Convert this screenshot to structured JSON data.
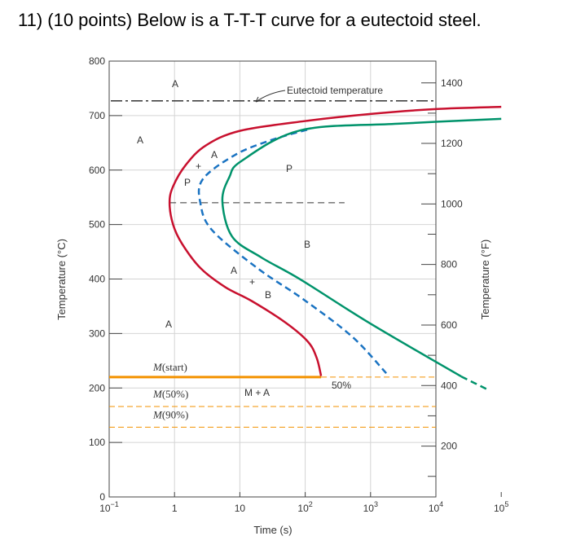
{
  "title": "11) (10 points) Below is a T-T-T curve for a eutectoid steel.",
  "chart_data": {
    "type": "line",
    "xlabel": "Time (s)",
    "ylabel": "Temperature (°C)",
    "ylabel_right": "Temperature (°F)",
    "x_scale": "log",
    "xlim": [
      0.1,
      100000
    ],
    "ylim": [
      0,
      800
    ],
    "x_ticks": [
      {
        "value": 0.1,
        "base": "10",
        "exp": "−1"
      },
      {
        "value": 1,
        "base": "1",
        "exp": ""
      },
      {
        "value": 10,
        "base": "10",
        "exp": ""
      },
      {
        "value": 100,
        "base": "10",
        "exp": "2"
      },
      {
        "value": 1000,
        "base": "10",
        "exp": "3"
      },
      {
        "value": 10000,
        "base": "10",
        "exp": "4"
      },
      {
        "value": 100000,
        "base": "10",
        "exp": "5"
      }
    ],
    "y_ticks": [
      "0",
      "100",
      "200",
      "300",
      "400",
      "500",
      "600",
      "700",
      "800"
    ],
    "y_right_ticks": [
      "200",
      "400",
      "600",
      "800",
      "1000",
      "1200",
      "1400"
    ],
    "grid": true,
    "eutectoid_temperature": 727,
    "eutectoid_label": "Eutectoid temperature",
    "nose_reference_temperature": 540,
    "series": [
      {
        "id": "start",
        "color": "#c8102e",
        "style": "solid",
        "points": [
          [
            100000,
            716
          ],
          [
            10000,
            712
          ],
          [
            1000,
            703
          ],
          [
            100,
            690
          ],
          [
            10,
            672
          ],
          [
            3,
            645
          ],
          [
            1.5,
            610
          ],
          [
            0.95,
            570
          ],
          [
            0.84,
            540
          ],
          [
            0.95,
            500
          ],
          [
            1.3,
            465
          ],
          [
            2.5,
            420
          ],
          [
            6,
            385
          ],
          [
            15,
            360
          ],
          [
            50,
            320
          ],
          [
            110,
            285
          ],
          [
            150,
            255
          ],
          [
            175,
            222
          ]
        ]
      },
      {
        "id": "fifty-percent",
        "color": "#1a73c2",
        "style": "dashed",
        "points": [
          [
            107,
            674
          ],
          [
            30,
            655
          ],
          [
            8.5,
            628
          ],
          [
            2.7,
            583
          ],
          [
            2.5,
            538
          ],
          [
            3.8,
            489
          ],
          [
            19,
            419
          ],
          [
            93,
            363
          ],
          [
            525,
            294
          ],
          [
            1740,
            227
          ]
        ]
      },
      {
        "id": "finish",
        "color": "#00936b",
        "style": "solid",
        "points": [
          [
            100000,
            694
          ],
          [
            2600,
            685
          ],
          [
            85,
            673
          ],
          [
            10.7,
            617
          ],
          [
            6.9,
            587
          ],
          [
            5.4,
            543
          ],
          [
            7.6,
            478
          ],
          [
            21,
            440
          ],
          [
            85,
            399
          ],
          [
            1000,
            318
          ],
          [
            24500,
            221
          ]
        ]
      },
      {
        "id": "finish-extension",
        "color": "#00936b",
        "style": "dashed",
        "points": [
          [
            24500,
            221
          ],
          [
            62000,
            197
          ]
        ]
      }
    ],
    "martensite_lines": [
      {
        "label_M": "M",
        "label_rest": "(start)",
        "temperature": 220,
        "solid_until": 175
      },
      {
        "label_M": "M",
        "label_rest": "(50%)",
        "temperature": 166
      },
      {
        "label_M": "M",
        "label_rest": "(90%)",
        "temperature": 128
      }
    ],
    "martensite_color": "#f39200",
    "region_labels": {
      "a_top": "A",
      "a_left": "A",
      "p_right": "P",
      "p_mix": "P",
      "plus_upper": "+",
      "a_mix_upper": "A",
      "b_right": "B",
      "a_mix_lower": "A",
      "plus_lower": "+",
      "b_mix": "B",
      "a_lower": "A",
      "m_plus_a": "M + A",
      "fifty": "50%"
    }
  }
}
